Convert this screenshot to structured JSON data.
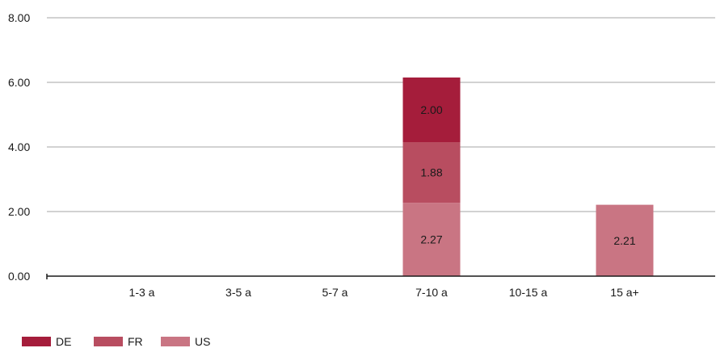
{
  "chart_data": {
    "type": "bar",
    "stacked": true,
    "categories": [
      "1-3 a",
      "3-5 a",
      "5-7 a",
      "7-10 a",
      "10-15 a",
      "15 a+"
    ],
    "series": [
      {
        "name": "US",
        "values": [
          0,
          0,
          0,
          2.27,
          0,
          2.21
        ],
        "color": "#c97583"
      },
      {
        "name": "FR",
        "values": [
          0,
          0,
          0,
          1.88,
          0,
          0
        ],
        "color": "#b84d60"
      },
      {
        "name": "DE",
        "values": [
          0,
          0,
          0,
          2.0,
          0,
          0
        ],
        "color": "#a51d3b"
      }
    ],
    "legend_order": [
      "DE",
      "FR",
      "US"
    ],
    "legend_position": "bottom-left",
    "ylim": [
      0,
      8
    ],
    "yticks": [
      "0.00",
      "2.00",
      "4.00",
      "6.00",
      "8.00"
    ],
    "grid": true,
    "title": "",
    "xlabel": "",
    "ylabel": ""
  }
}
